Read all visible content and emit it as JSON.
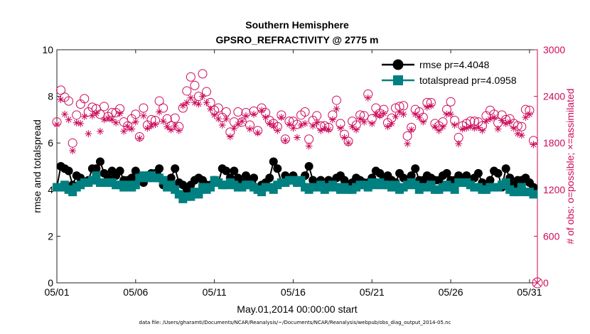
{
  "chart_data": {
    "type": "scatter",
    "title": "Southern Hemisphere",
    "subtitle": "GPSRO_REFRACTIVITY @ 2775 m",
    "xlabel": "May.01,2014 00:00:00 start",
    "ylabel": "rmse and totalspread",
    "y2label": "# of obs: o=possible; ×=assimilated",
    "x_tick_labels": [
      "05/01",
      "05/06",
      "05/11",
      "05/16",
      "05/21",
      "05/26",
      "05/31"
    ],
    "x_tick_values": [
      0,
      5,
      10,
      15,
      20,
      25,
      30
    ],
    "xlim": [
      0,
      30.5
    ],
    "ylim": [
      0,
      10
    ],
    "y_ticks": [
      "0",
      "2",
      "4",
      "6",
      "8",
      "10"
    ],
    "y2lim": [
      0,
      3000
    ],
    "y2_ticks": [
      "0",
      "600",
      "1200",
      "1800",
      "2400",
      "3000"
    ],
    "legend_position": "top-right",
    "grid": false,
    "colors": {
      "rmse": "#000000",
      "totalspread": "#008080",
      "obs": "#cc0a5a"
    },
    "x": [
      0.0,
      0.25,
      0.5,
      0.75,
      1.0,
      1.25,
      1.5,
      1.75,
      2.0,
      2.25,
      2.5,
      2.75,
      3.0,
      3.25,
      3.5,
      3.75,
      4.0,
      4.25,
      4.5,
      4.75,
      5.0,
      5.25,
      5.5,
      5.75,
      6.0,
      6.25,
      6.5,
      6.75,
      7.0,
      7.25,
      7.5,
      7.75,
      8.0,
      8.25,
      8.5,
      8.75,
      9.0,
      9.25,
      9.5,
      9.75,
      10.0,
      10.25,
      10.5,
      10.75,
      11.0,
      11.25,
      11.5,
      11.75,
      12.0,
      12.25,
      12.5,
      12.75,
      13.0,
      13.25,
      13.5,
      13.75,
      14.0,
      14.25,
      14.5,
      14.75,
      15.0,
      15.25,
      15.5,
      15.75,
      16.0,
      16.25,
      16.5,
      16.75,
      17.0,
      17.25,
      17.5,
      17.75,
      18.0,
      18.25,
      18.5,
      18.75,
      19.0,
      19.25,
      19.5,
      19.75,
      20.0,
      20.25,
      20.5,
      20.75,
      21.0,
      21.25,
      21.5,
      21.75,
      22.0,
      22.25,
      22.5,
      22.75,
      23.0,
      23.25,
      23.5,
      23.75,
      24.0,
      24.25,
      24.5,
      24.75,
      25.0,
      25.25,
      25.5,
      25.75,
      26.0,
      26.25,
      26.5,
      26.75,
      27.0,
      27.25,
      27.5,
      27.75,
      28.0,
      28.25,
      28.5,
      28.75,
      29.0,
      29.25,
      29.5,
      29.75,
      30.0,
      30.25
    ],
    "series": [
      {
        "name": "rmse pr=4.4048",
        "axis": "left",
        "marker": "filled-circle",
        "line": true,
        "values": [
          4.1,
          5.0,
          4.9,
          4.8,
          4.2,
          4.6,
          4.5,
          4.3,
          4.4,
          4.9,
          4.9,
          5.2,
          4.7,
          4.5,
          4.8,
          4.6,
          4.8,
          4.4,
          4.4,
          4.5,
          4.8,
          4.4,
          4.3,
          4.6,
          4.7,
          4.7,
          4.9,
          4.2,
          4.3,
          4.5,
          4.9,
          4.3,
          4.2,
          4.0,
          4.2,
          4.4,
          4.5,
          4.4,
          4.2,
          4.2,
          4.4,
          4.3,
          4.9,
          4.8,
          4.5,
          4.8,
          4.5,
          4.3,
          4.6,
          4.4,
          4.5,
          4.0,
          4.2,
          4.3,
          4.5,
          5.2,
          4.9,
          4.3,
          4.6,
          4.4,
          4.6,
          4.3,
          4.3,
          4.6,
          5.0,
          4.4,
          4.3,
          4.4,
          4.2,
          4.4,
          4.3,
          4.5,
          4.6,
          4.4,
          4.2,
          4.3,
          4.5,
          4.4,
          4.3,
          4.3,
          4.5,
          4.8,
          4.7,
          4.5,
          4.6,
          4.4,
          4.3,
          4.7,
          4.5,
          4.4,
          4.6,
          4.9,
          4.4,
          4.4,
          4.6,
          4.5,
          4.4,
          4.4,
          4.6,
          4.7,
          4.4,
          4.4,
          4.6,
          4.5,
          4.6,
          4.3,
          4.5,
          4.7,
          4.3,
          4.2,
          4.4,
          4.8,
          4.7,
          4.1,
          4.9,
          4.5,
          4.2,
          4.4,
          4.4,
          4.5,
          4.3,
          4.1
        ]
      },
      {
        "name": "totalspread pr=4.0958",
        "axis": "left",
        "marker": "filled-square",
        "line": true,
        "values": [
          4.1,
          4.1,
          4.2,
          4.0,
          3.9,
          4.1,
          4.2,
          4.3,
          4.3,
          4.4,
          4.6,
          4.3,
          4.3,
          4.3,
          4.3,
          4.2,
          4.2,
          4.1,
          4.2,
          4.1,
          4.2,
          4.5,
          4.6,
          4.5,
          4.6,
          4.5,
          4.5,
          4.4,
          4.1,
          4.2,
          4.0,
          3.8,
          3.6,
          3.7,
          3.7,
          3.9,
          3.8,
          4.1,
          4.0,
          4.1,
          4.4,
          4.3,
          4.2,
          4.2,
          4.3,
          4.2,
          4.1,
          4.1,
          4.2,
          4.2,
          4.1,
          4.0,
          3.9,
          4.1,
          4.1,
          4.0,
          4.2,
          4.3,
          4.3,
          4.4,
          4.4,
          4.3,
          4.4,
          4.1,
          4.0,
          4.1,
          4.1,
          4.2,
          4.0,
          4.1,
          4.2,
          4.1,
          4.0,
          4.1,
          4.0,
          4.0,
          4.1,
          4.2,
          4.2,
          4.1,
          4.3,
          4.2,
          4.3,
          4.2,
          4.2,
          4.1,
          4.2,
          4.0,
          4.1,
          4.2,
          4.3,
          4.2,
          4.0,
          4.1,
          4.1,
          4.2,
          4.0,
          4.0,
          4.1,
          4.2,
          4.1,
          4.0,
          4.3,
          4.3,
          4.3,
          4.2,
          4.1,
          4.1,
          4.0,
          4.0,
          4.1,
          4.1,
          4.1,
          4.2,
          4.3,
          4.0,
          3.9,
          3.9,
          4.1,
          3.9,
          3.9,
          3.8
        ]
      },
      {
        "name": "possible",
        "axis": "right",
        "marker": "open-circle",
        "line": false,
        "values": [
          2070,
          2480,
          2390,
          2340,
          1800,
          2160,
          2300,
          2370,
          2200,
          2260,
          2240,
          2170,
          2270,
          2140,
          2190,
          2190,
          2240,
          2070,
          2020,
          2110,
          2170,
          1880,
          2250,
          2030,
          2100,
          2090,
          2340,
          2250,
          2110,
          2020,
          2120,
          2010,
          2250,
          2470,
          2650,
          2540,
          2400,
          2690,
          2460,
          2320,
          2220,
          2250,
          2130,
          2200,
          1940,
          2070,
          2200,
          2070,
          2190,
          2030,
          2210,
          1960,
          2250,
          2190,
          2090,
          2050,
          2010,
          2160,
          1850,
          2080,
          2080,
          2040,
          2160,
          2200,
          1850,
          2090,
          2150,
          2020,
          2020,
          2000,
          2160,
          2350,
          2050,
          1910,
          1820,
          2080,
          2030,
          2160,
          2150,
          2430,
          2110,
          2250,
          2180,
          2230,
          2060,
          2120,
          2250,
          2270,
          2280,
          1890,
          2000,
          2230,
          2200,
          2130,
          2320,
          2320,
          2050,
          2020,
          2070,
          2230,
          2330,
          2090,
          1870,
          2020,
          2050,
          2080,
          2080,
          2070,
          2020,
          2150,
          2220,
          2170,
          2060,
          2160,
          2100,
          2110,
          2050,
          2020,
          2010,
          2230,
          2220,
          1830
        ]
      },
      {
        "name": "assimilated",
        "axis": "right",
        "marker": "asterisk",
        "line": false,
        "values": [
          2040,
          2360,
          2170,
          2100,
          1700,
          2060,
          2050,
          2140,
          1920,
          2150,
          2180,
          1950,
          2100,
          2120,
          2100,
          2060,
          2180,
          1950,
          2010,
          1980,
          2070,
          1860,
          2150,
          1990,
          2020,
          2040,
          2200,
          2080,
          2010,
          1970,
          2020,
          1960,
          2280,
          2320,
          2380,
          2320,
          2300,
          2400,
          2320,
          2240,
          2160,
          2110,
          2030,
          2110,
          1880,
          1990,
          2040,
          2080,
          2150,
          1980,
          2170,
          1930,
          2220,
          2130,
          2050,
          2020,
          1960,
          2130,
          1830,
          2040,
          1990,
          1870,
          2030,
          2050,
          1760,
          2020,
          2060,
          1960,
          1990,
          1970,
          2100,
          2240,
          1990,
          1870,
          1800,
          2010,
          1970,
          2110,
          2070,
          2380,
          2050,
          2170,
          2150,
          2180,
          2010,
          2050,
          2140,
          2200,
          2170,
          1790,
          1970,
          2170,
          2130,
          2070,
          2260,
          2280,
          2010,
          1960,
          2010,
          2170,
          2170,
          2030,
          1790,
          1980,
          1990,
          2010,
          1990,
          2000,
          1960,
          2080,
          2110,
          2130,
          1980,
          2090,
          2050,
          2070,
          1990,
          1920,
          1900,
          2130,
          2170,
          1780
        ]
      }
    ],
    "extra_point": {
      "x": 30.5,
      "y2": 0,
      "marker": "circled-x"
    }
  },
  "footnote": "data file: /Users/gharamti/Documents/NCAR/Reanalysis/~/Documents/NCAR/Reanalysis/webpub/obs_diag_output_2014-05.nc"
}
